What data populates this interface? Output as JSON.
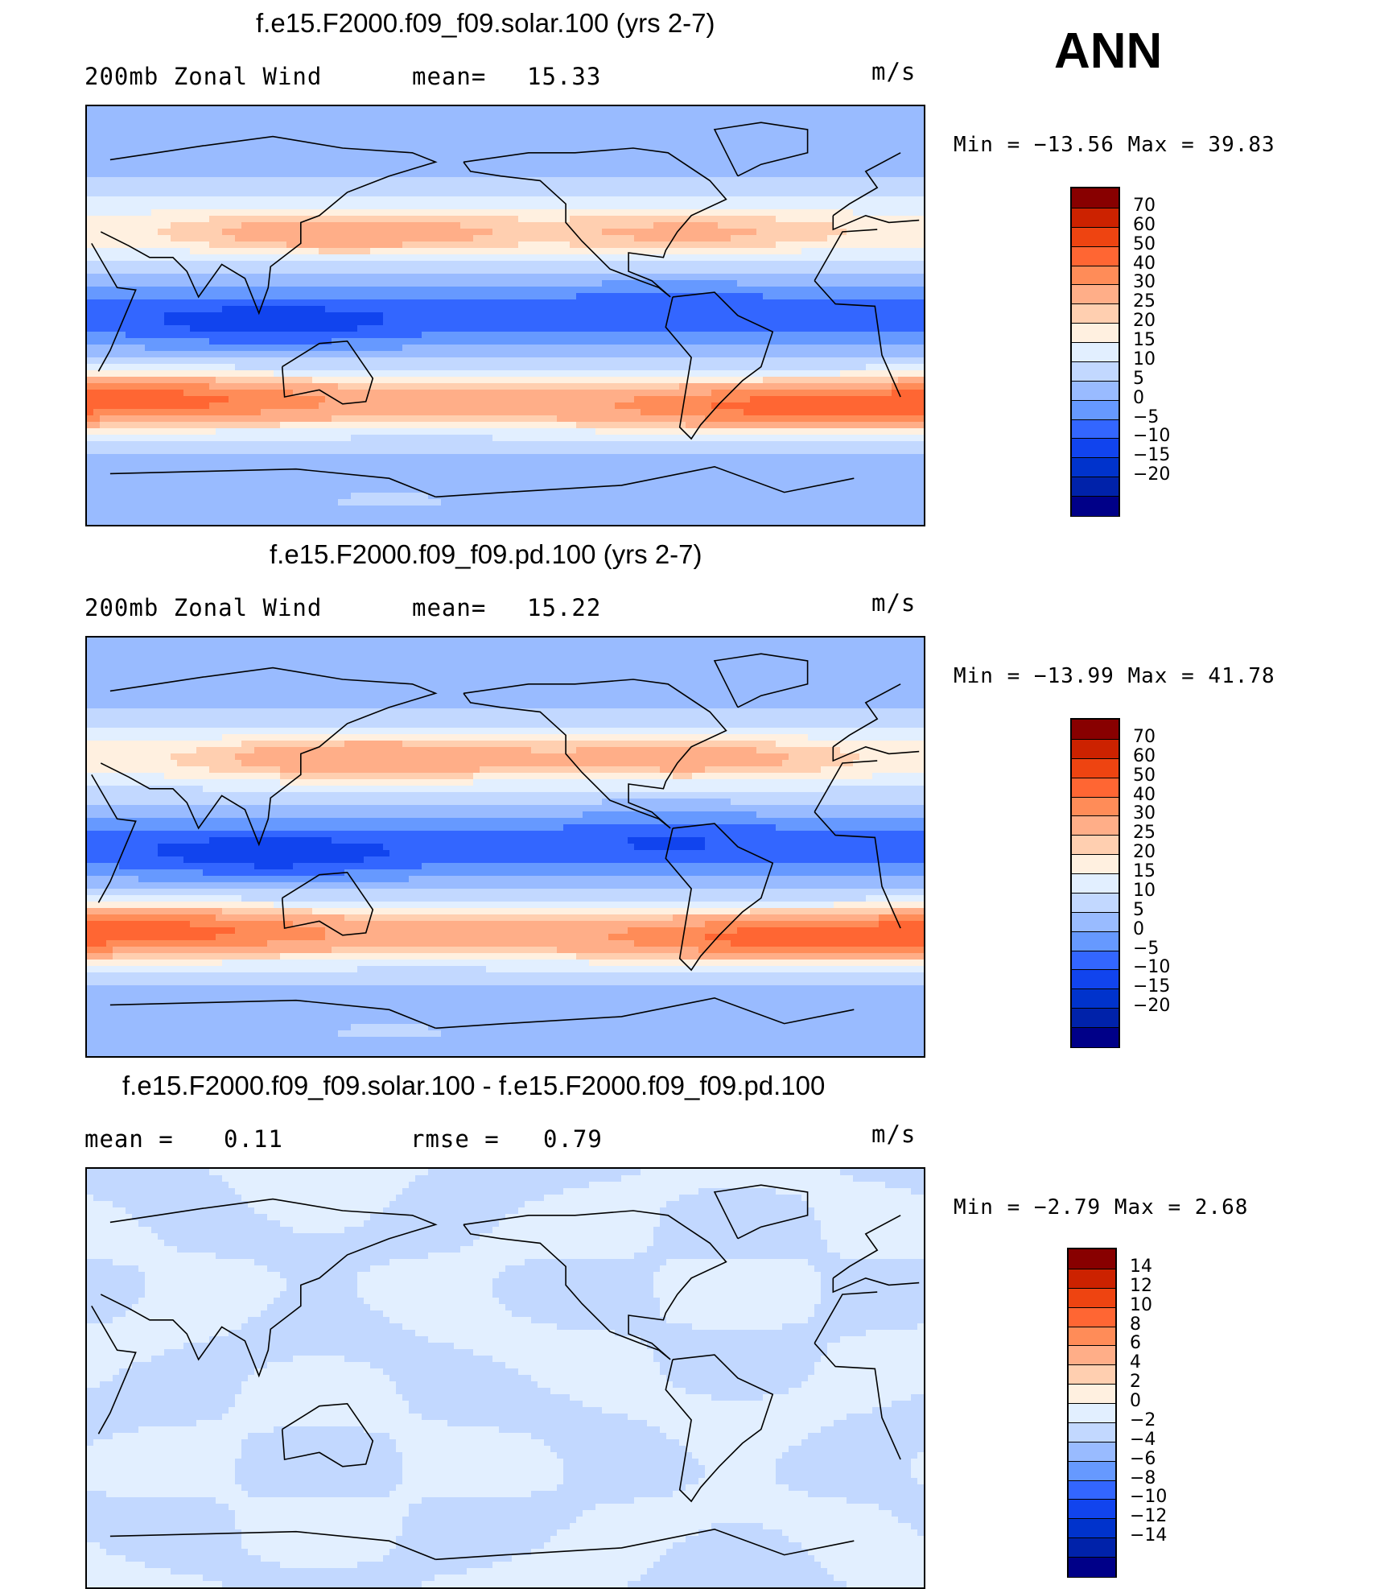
{
  "season": "ANN",
  "colors": {
    "abs_scale": [
      "#000088",
      "#0022aa",
      "#0033cc",
      "#1144ee",
      "#3366ff",
      "#6699ff",
      "#99bbff",
      "#c2d8ff",
      "#e2efff",
      "#fff0e0",
      "#ffcfb0",
      "#ffae88",
      "#ff8c58",
      "#ff6633",
      "#ee4411",
      "#cc2200",
      "#880000"
    ],
    "diff_scale": [
      "#000088",
      "#0022aa",
      "#0033cc",
      "#1144ee",
      "#3366ff",
      "#6699ff",
      "#99bbff",
      "#c2d8ff",
      "#e2efff",
      "#fff0e0",
      "#ffcfb0",
      "#ffae88",
      "#ff8c58",
      "#ff6633",
      "#ee4411",
      "#cc2200",
      "#880000"
    ]
  },
  "panels": [
    {
      "title": "f.e15.F2000.f09_f09.solar.100 (yrs 2-7)",
      "left_label": "200mb  Zonal  Wind",
      "stat1_label": "mean=",
      "stat1_value": "15.33",
      "units": "m/s",
      "min_max": "Min  =  −13.56  Max  =   39.83",
      "levels": [
        "70",
        "60",
        "50",
        "40",
        "30",
        "25",
        "20",
        "15",
        "10",
        "5",
        "0",
        "−5",
        "−10",
        "−15",
        "−20"
      ],
      "fields": [
        {
          "lat": -80,
          "lon": 160,
          "amp": 8
        },
        {
          "lat": 35,
          "lon": 140,
          "amp": 32
        },
        {
          "lat": 35,
          "lon": 290,
          "amp": 22
        },
        {
          "lat": -35,
          "lon": 60,
          "amp": 36
        },
        {
          "lat": -40,
          "lon": 330,
          "amp": 34
        },
        {
          "lat": -5,
          "lon": 110,
          "amp": -13
        },
        {
          "lat": 5,
          "lon": 280,
          "amp": -6
        }
      ]
    },
    {
      "title": "f.e15.F2000.f09_f09.pd.100 (yrs 2-7)",
      "left_label": "200mb  Zonal  Wind",
      "stat1_label": "mean=",
      "stat1_value": "15.22",
      "units": "m/s",
      "min_max": "Min  =  −13.99  Max  =   41.78",
      "levels": [
        "70",
        "60",
        "50",
        "40",
        "30",
        "25",
        "20",
        "15",
        "10",
        "5",
        "0",
        "−5",
        "−10",
        "−15",
        "−20"
      ],
      "fields": [
        {
          "lat": -80,
          "lon": 160,
          "amp": 8
        },
        {
          "lat": 38,
          "lon": 150,
          "amp": 35
        },
        {
          "lat": 38,
          "lon": 290,
          "amp": 26
        },
        {
          "lat": -35,
          "lon": 60,
          "amp": 37
        },
        {
          "lat": -40,
          "lon": 330,
          "amp": 36
        },
        {
          "lat": -5,
          "lon": 110,
          "amp": -14
        },
        {
          "lat": 5,
          "lon": 280,
          "amp": -7
        }
      ]
    },
    {
      "title": "f.e15.F2000.f09_f09.solar.100 - f.e15.F2000.f09_f09.pd.100",
      "left_label": "mean  =",
      "left_value": "0.11",
      "stat1_label": "rmse  =",
      "stat1_value": "0.79",
      "units": "m/s",
      "min_max": "Min  =    −2.79  Max  =     2.68",
      "levels": [
        "14",
        "12",
        "10",
        "8",
        "6",
        "4",
        "2",
        "0",
        "−2",
        "−4",
        "−6",
        "−8",
        "−10",
        "−12",
        "−14"
      ]
    }
  ]
}
